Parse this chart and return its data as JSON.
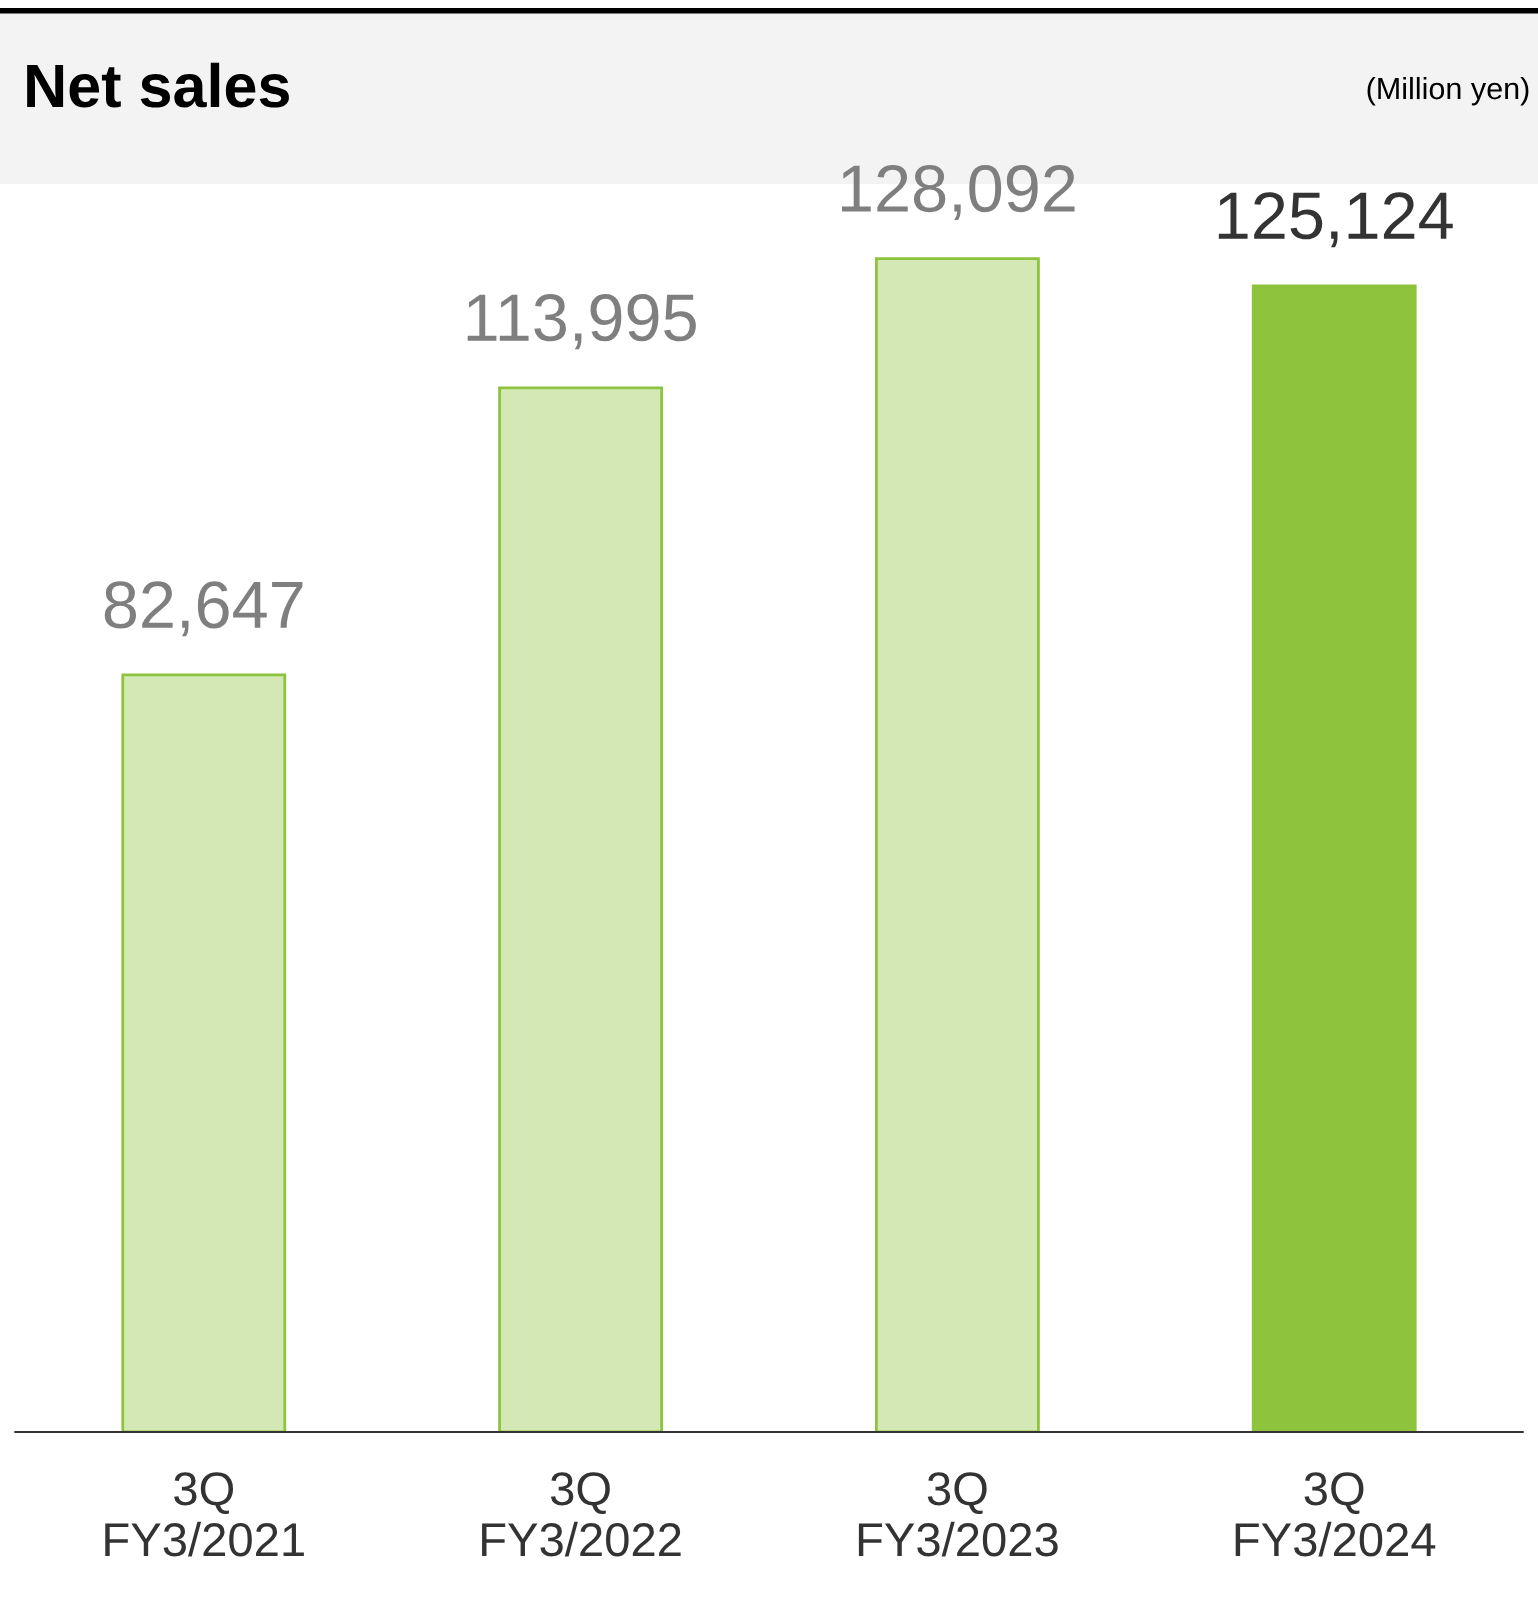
{
  "chart_data": {
    "type": "bar",
    "title": "Net sales",
    "annotations": [
      "(Million yen)"
    ],
    "categories": [
      "3Q\nFY3/2021",
      "3Q\nFY3/2022",
      "3Q\nFY3/2023",
      "3Q\nFY3/2024"
    ],
    "values": [
      82647,
      113995,
      128092,
      125124
    ],
    "colors": [
      "#d3e8b5",
      "#d3e8b5",
      "#d3e8b5",
      "#8dc33d"
    ],
    "value_labels": [
      "82,647",
      "113,995",
      "128,092",
      "125,124"
    ],
    "tick_labels": "x",
    "grid": false,
    "legend": false
  }
}
